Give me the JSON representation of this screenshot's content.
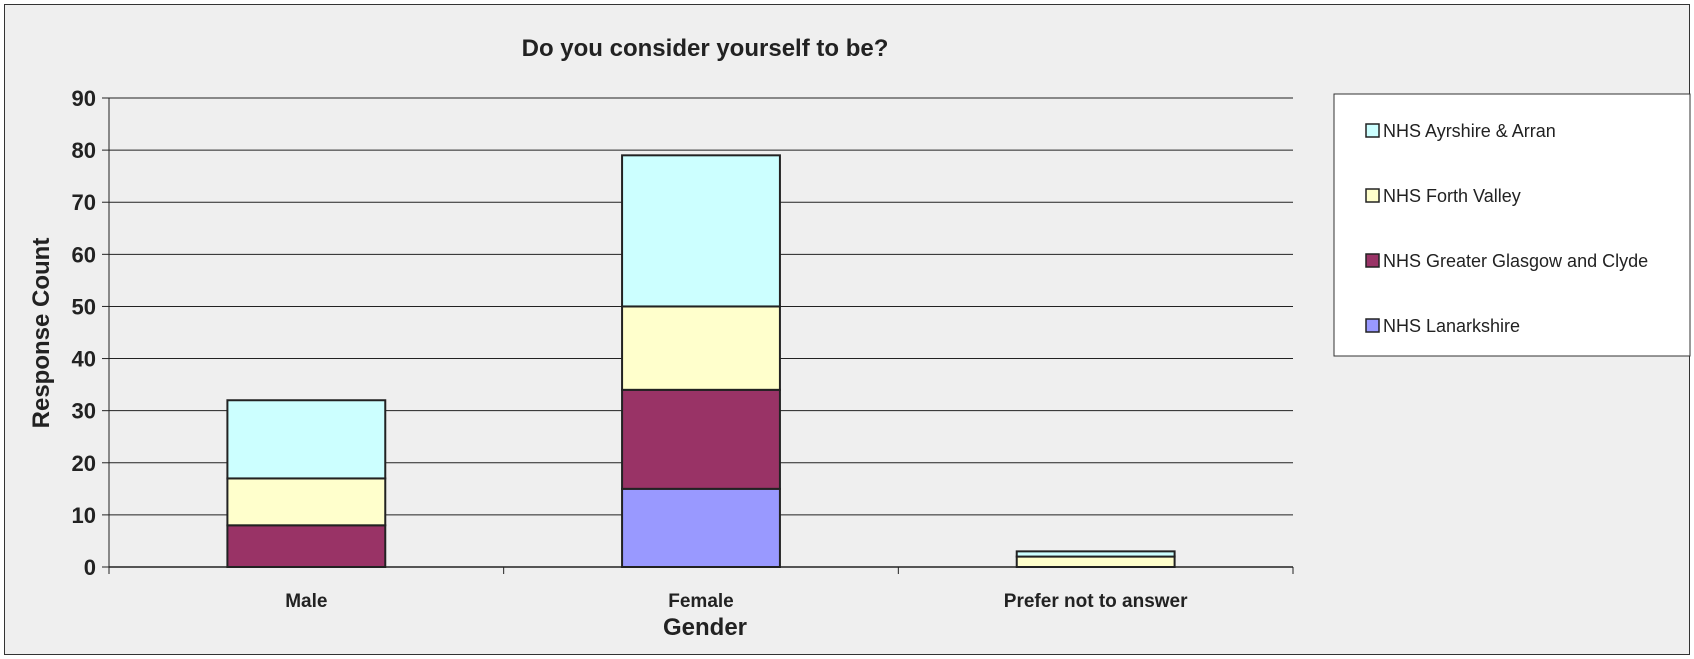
{
  "chart_data": {
    "type": "bar",
    "stacked": true,
    "title": "Do you consider yourself to be?",
    "xlabel": "Gender",
    "ylabel": "Response Count",
    "categories": [
      "Male",
      "Female",
      "Prefer not to answer"
    ],
    "ylim": [
      0,
      90
    ],
    "yticks": [
      "0",
      "10",
      "20",
      "30",
      "40",
      "50",
      "60",
      "70",
      "80",
      "90"
    ],
    "grid": true,
    "legend_position": "right",
    "series": [
      {
        "name": "NHS Lanarkshire",
        "color": "#9999ff",
        "values": [
          0,
          15,
          0
        ]
      },
      {
        "name": "NHS Greater Glasgow and Clyde",
        "color": "#993366",
        "values": [
          8,
          19,
          0
        ]
      },
      {
        "name": "NHS Forth Valley",
        "color": "#ffffcc",
        "values": [
          9,
          16,
          2
        ]
      },
      {
        "name": "NHS Ayrshire & Arran",
        "color": "#ccffff",
        "values": [
          15,
          29,
          1
        ]
      }
    ]
  }
}
